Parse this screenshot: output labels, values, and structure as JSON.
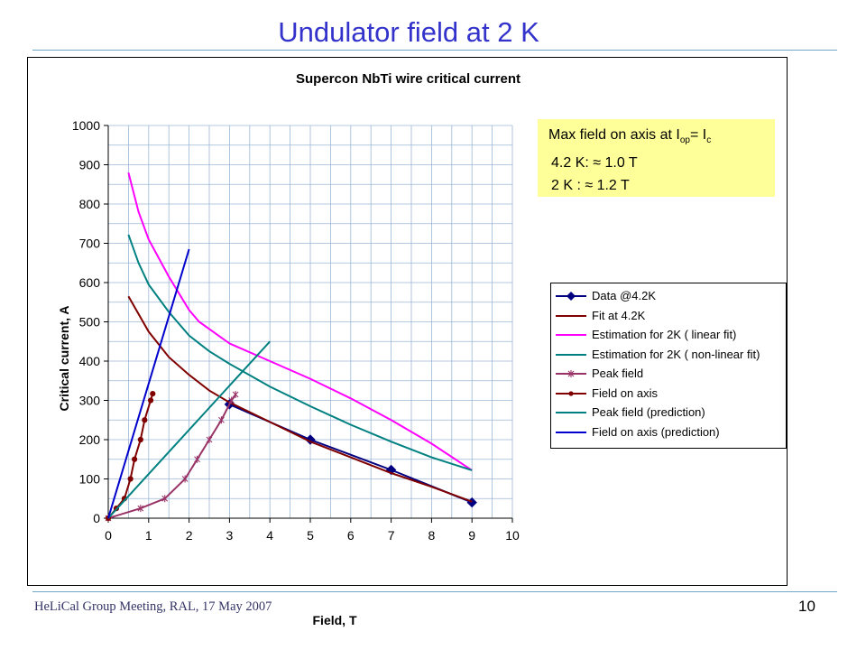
{
  "slide": {
    "title": "Undulator field at 2 K",
    "footer": "HeLiCal Group Meeting, RAL, 17 May 2007",
    "page_number": "10"
  },
  "infobox": {
    "line1_prefix": "Max field on axis at I",
    "line1_sub1": "op",
    "line1_mid": "= I",
    "line1_sub2": "c",
    "line2": "4.2 K:   ≈ 1.0 T",
    "line3": "2 K   :   ≈ 1.2 T"
  },
  "chart_data": {
    "type": "line",
    "title": "Supercon NbTi wire critical current",
    "xlabel": "Field, T",
    "ylabel": "Critical current, A",
    "xlim": [
      0,
      10
    ],
    "ylim": [
      0,
      1000
    ],
    "x_ticks": [
      "0",
      "1",
      "2",
      "3",
      "4",
      "5",
      "6",
      "7",
      "8",
      "9",
      "10"
    ],
    "y_ticks": [
      "0",
      "100",
      "200",
      "300",
      "400",
      "500",
      "600",
      "700",
      "800",
      "900",
      "1000"
    ],
    "grid": true,
    "legend_position": "right",
    "series": [
      {
        "name": "Data @4.2K",
        "color": "#000080",
        "marker": "diamond",
        "points": [
          [
            3,
            290
          ],
          [
            5,
            200
          ],
          [
            7,
            123
          ],
          [
            9,
            40
          ]
        ]
      },
      {
        "name": "Fit at 4.2K",
        "color": "#800000",
        "marker": "none",
        "points": [
          [
            0.5,
            565
          ],
          [
            1,
            475
          ],
          [
            1.5,
            410
          ],
          [
            2,
            365
          ],
          [
            2.5,
            325
          ],
          [
            3,
            295
          ],
          [
            4,
            245
          ],
          [
            5,
            195
          ],
          [
            6,
            155
          ],
          [
            7,
            115
          ],
          [
            8,
            80
          ],
          [
            9,
            42
          ]
        ]
      },
      {
        "name": "Estimation for 2K ( linear fit)",
        "color": "#ff00ff",
        "marker": "none",
        "points": [
          [
            0.5,
            880
          ],
          [
            0.75,
            780
          ],
          [
            1,
            710
          ],
          [
            1.5,
            615
          ],
          [
            2,
            530
          ],
          [
            2.25,
            500
          ],
          [
            3,
            445
          ],
          [
            4,
            400
          ],
          [
            5,
            355
          ],
          [
            6,
            305
          ],
          [
            7,
            250
          ],
          [
            8,
            190
          ],
          [
            9,
            122
          ]
        ]
      },
      {
        "name": "Estimation for 2K ( non-linear fit)",
        "color": "#008080",
        "marker": "none",
        "points": [
          [
            0.5,
            722
          ],
          [
            0.75,
            650
          ],
          [
            1,
            595
          ],
          [
            1.5,
            525
          ],
          [
            2,
            465
          ],
          [
            2.5,
            425
          ],
          [
            3,
            393
          ],
          [
            4,
            335
          ],
          [
            5,
            285
          ],
          [
            6,
            238
          ],
          [
            7,
            195
          ],
          [
            8,
            155
          ],
          [
            9,
            122
          ]
        ]
      },
      {
        "name": "Peak field",
        "color": "#993366",
        "marker": "star",
        "points": [
          [
            0,
            0
          ],
          [
            0.8,
            25
          ],
          [
            1.4,
            50
          ],
          [
            1.9,
            100
          ],
          [
            2.2,
            150
          ],
          [
            2.5,
            200
          ],
          [
            2.8,
            250
          ],
          [
            3.05,
            300
          ],
          [
            3.15,
            315
          ]
        ]
      },
      {
        "name": "Field on axis",
        "color": "#800000",
        "marker": "circle",
        "points": [
          [
            0,
            0
          ],
          [
            0.2,
            25
          ],
          [
            0.4,
            50
          ],
          [
            0.55,
            100
          ],
          [
            0.65,
            150
          ],
          [
            0.8,
            200
          ],
          [
            0.9,
            250
          ],
          [
            1.05,
            300
          ],
          [
            1.1,
            317
          ]
        ]
      },
      {
        "name": "Peak field (prediction)",
        "color": "#008080",
        "marker": "none",
        "points": [
          [
            0,
            0
          ],
          [
            4,
            450
          ]
        ]
      },
      {
        "name": "Field on axis (prediction)",
        "color": "#0000cc",
        "marker": "none",
        "points": [
          [
            0,
            0
          ],
          [
            2,
            685
          ]
        ]
      }
    ]
  }
}
